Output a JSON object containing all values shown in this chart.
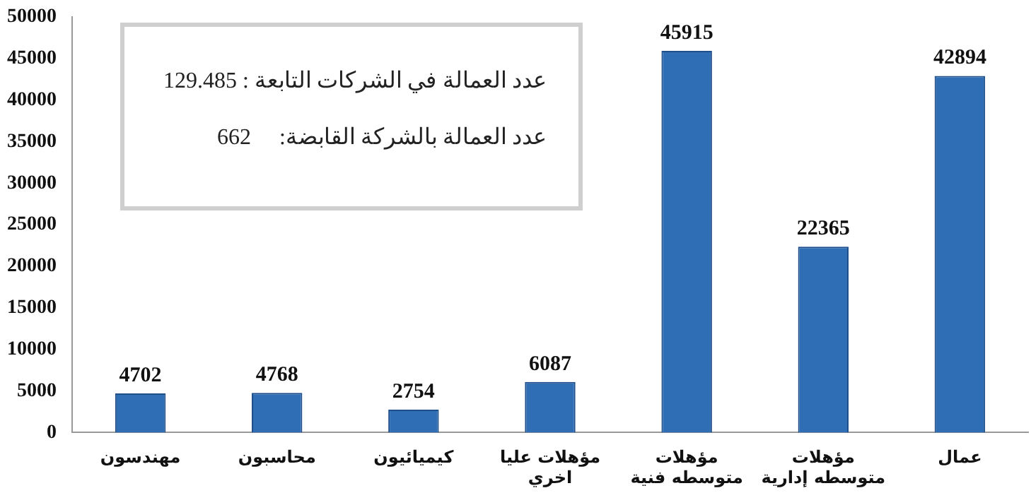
{
  "chart_data": {
    "type": "bar",
    "categories": [
      "مهندسون",
      "محاسبون",
      "كيميائيون",
      "مؤهلات عليا\nاخري",
      "مؤهلات\nمتوسطه فنية",
      "مؤهلات\nمتوسطه إدارية",
      "عمال"
    ],
    "values": [
      4702,
      4768,
      2754,
      6087,
      45915,
      22365,
      42894
    ],
    "color": "#2f6db5",
    "ylim": [
      0,
      50000
    ],
    "yticks": [
      0,
      5000,
      10000,
      15000,
      20000,
      25000,
      30000,
      35000,
      40000,
      45000,
      50000
    ],
    "grid": false,
    "legend": false,
    "data_labels": true,
    "annotations": [
      "عدد العمالة في الشركات التابعة : 129.485",
      "عدد العمالة بالشركة القابضة:     662"
    ]
  }
}
